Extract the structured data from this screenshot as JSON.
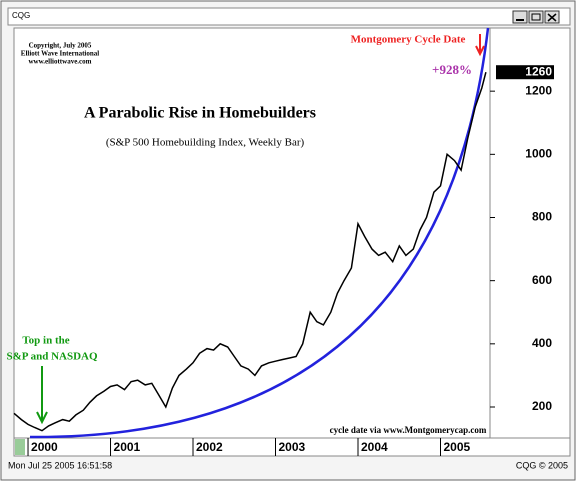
{
  "window_title": "CQG",
  "status_left": "Mon Jul 25 2005 16:51:58",
  "status_right": "CQG © 2005",
  "chart_data": {
    "type": "line",
    "title": "A Parabolic Rise in Homebuilders",
    "subtitle": "(S&P 500 Homebuilding Index, Weekly Bar)",
    "copyright": [
      "Copyright, July 2005",
      "Elliott Wave International",
      "www.elliottwave.com"
    ],
    "annotations": {
      "top": [
        "Top in the",
        "S&P and NASDAQ"
      ],
      "cycle": "Montgomery Cycle Date",
      "gain": "+928%",
      "source": "cycle date via www.Montgomerycap.com"
    },
    "color": "#000000",
    "curve_color": "#2222dd",
    "x": [
      1999.83,
      1999.92,
      2000.0,
      2000.08,
      2000.17,
      2000.25,
      2000.33,
      2000.42,
      2000.5,
      2000.58,
      2000.67,
      2000.75,
      2000.83,
      2000.92,
      2001.0,
      2001.08,
      2001.17,
      2001.25,
      2001.33,
      2001.42,
      2001.5,
      2001.58,
      2001.67,
      2001.75,
      2001.83,
      2001.92,
      2002.0,
      2002.08,
      2002.17,
      2002.25,
      2002.33,
      2002.42,
      2002.5,
      2002.58,
      2002.67,
      2002.75,
      2002.83,
      2002.92,
      2003.0,
      2003.08,
      2003.17,
      2003.25,
      2003.33,
      2003.42,
      2003.5,
      2003.58,
      2003.67,
      2003.75,
      2003.83,
      2003.92,
      2004.0,
      2004.08,
      2004.17,
      2004.25,
      2004.33,
      2004.42,
      2004.5,
      2004.58,
      2004.67,
      2004.75,
      2004.83,
      2004.92,
      2005.0,
      2005.08,
      2005.17,
      2005.25,
      2005.33,
      2005.42,
      2005.5,
      2005.55
    ],
    "values": [
      180,
      160,
      145,
      135,
      125,
      140,
      150,
      160,
      155,
      175,
      190,
      215,
      235,
      250,
      265,
      270,
      255,
      280,
      285,
      270,
      275,
      240,
      200,
      260,
      300,
      320,
      340,
      370,
      385,
      380,
      400,
      390,
      360,
      330,
      320,
      300,
      330,
      340,
      345,
      350,
      355,
      360,
      400,
      500,
      470,
      460,
      500,
      560,
      600,
      640,
      780,
      740,
      700,
      680,
      690,
      660,
      710,
      680,
      700,
      760,
      800,
      880,
      900,
      1000,
      980,
      950,
      1050,
      1150,
      1210,
      1260
    ],
    "xlim": [
      1999.83,
      2005.6
    ],
    "xticks": [
      2000,
      2001,
      2002,
      2003,
      2004,
      2005
    ],
    "ylim": [
      105,
      1400
    ],
    "yticks": [
      200,
      400,
      600,
      800,
      1000,
      1200
    ]
  }
}
